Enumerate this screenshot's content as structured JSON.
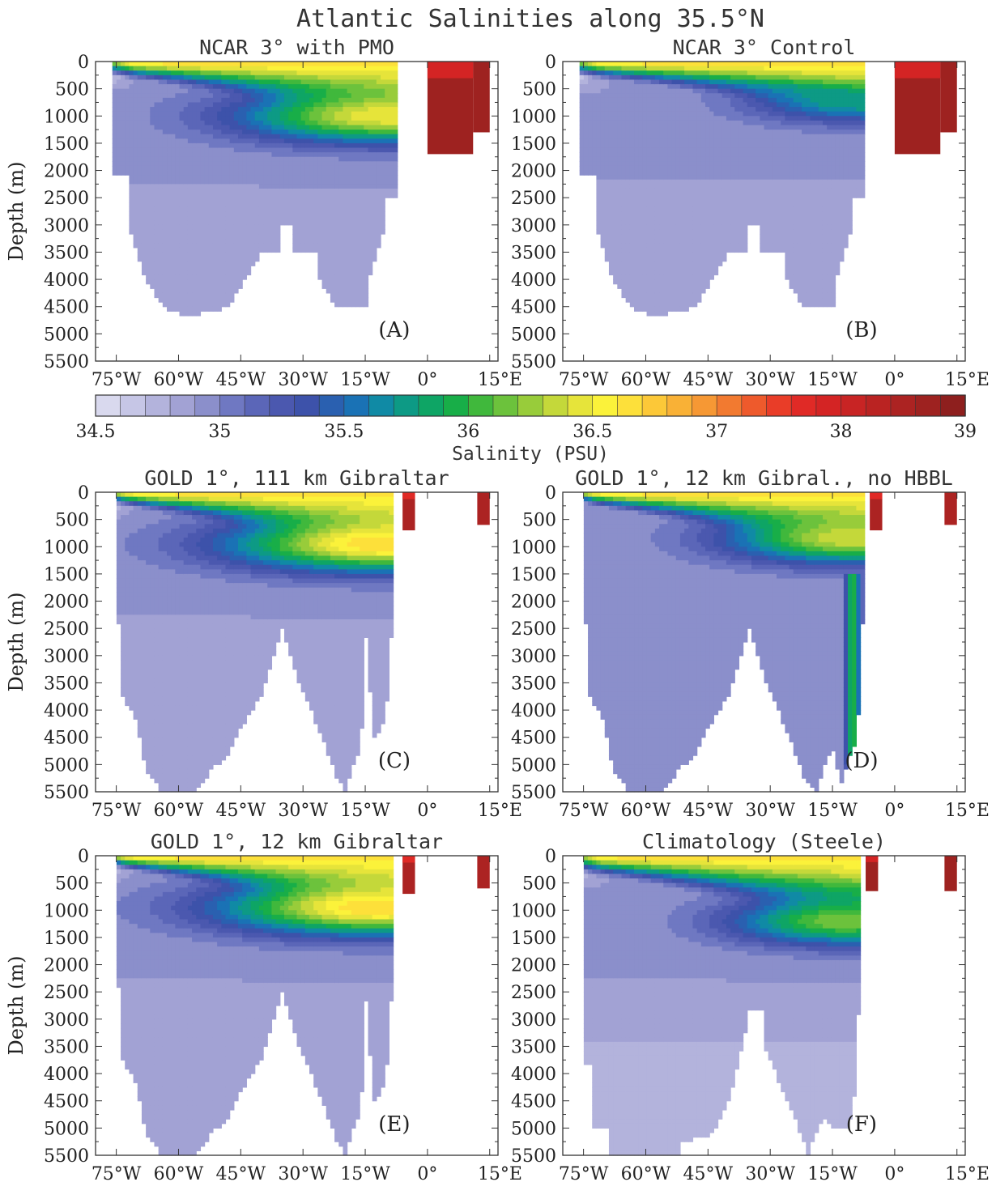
{
  "figure": {
    "title": "Atlantic Salinities along 35.5°N",
    "colorbar_label": "Salinity (PSU)",
    "ylabel": "Depth (m)"
  },
  "colors": {
    "levels": [
      34.5,
      34.6,
      34.7,
      34.8,
      34.9,
      35.0,
      35.1,
      35.2,
      35.3,
      35.4,
      35.5,
      35.6,
      35.7,
      35.8,
      35.9,
      36.0,
      36.1,
      36.2,
      36.3,
      36.4,
      36.5,
      36.6,
      36.7,
      36.8,
      36.9,
      37.0,
      37.2,
      37.4,
      37.6,
      37.8,
      38.0,
      38.2,
      38.4,
      38.6,
      38.8,
      39.0
    ],
    "palette": [
      "#d9d9ee",
      "#c6c6e6",
      "#b3b3dc",
      "#a2a2d4",
      "#8b8fcb",
      "#6f78c2",
      "#5b66b8",
      "#4b58af",
      "#3d52aa",
      "#2a60b0",
      "#1a72b5",
      "#108aa5",
      "#0d9a85",
      "#0ea565",
      "#18ae48",
      "#40b83c",
      "#6cc23c",
      "#98cc3a",
      "#c4d83a",
      "#e6e43a",
      "#fbf23a",
      "#fde03a",
      "#fcc838",
      "#f9b136",
      "#f69834",
      "#f27a30",
      "#ee5a2c",
      "#e93d28",
      "#e02a26",
      "#d42424",
      "#c82424",
      "#ba2322",
      "#ac2322",
      "#9e2220",
      "#8e1f1e"
    ],
    "colorbar_ticks": [
      "34.5",
      "35",
      "35.5",
      "36",
      "36.5",
      "37",
      "38",
      "39"
    ]
  },
  "chart_data": [
    {
      "id": "A",
      "type": "heatmap",
      "title": "NCAR 3° with PMO",
      "panel_label": "(A)",
      "x_unit": "degrees_east",
      "xlim": [
        -80,
        17
      ],
      "ylim": [
        5500,
        0
      ],
      "xticks": [
        "75°W",
        "60°W",
        "45°W",
        "30°W",
        "15°W",
        "0°",
        "15°E"
      ],
      "yticks": [
        "0",
        "500",
        "1000",
        "1500",
        "2000",
        "2500",
        "3000",
        "3500",
        "4000",
        "4500",
        "5000",
        "5500"
      ],
      "ylabel": "Depth (m)",
      "bathymetry": [
        [
          -76,
          2100
        ],
        [
          -72,
          2100
        ],
        [
          -72,
          3000
        ],
        [
          -68,
          4000
        ],
        [
          -64,
          4500
        ],
        [
          -58,
          4700
        ],
        [
          -48,
          4500
        ],
        [
          -44,
          4000
        ],
        [
          -40,
          3500
        ],
        [
          -36,
          3500
        ],
        [
          -36,
          3000
        ],
        [
          -33,
          3000
        ],
        [
          -33,
          3500
        ],
        [
          -26,
          3500
        ],
        [
          -26,
          4000
        ],
        [
          -22,
          4500
        ],
        [
          -14,
          4500
        ],
        [
          -14,
          4000
        ],
        [
          -10,
          3000
        ],
        [
          -10,
          2500
        ],
        [
          -7,
          2500
        ],
        [
          -7,
          0
        ]
      ],
      "mediterranean": {
        "lon": [
          0,
          15
        ],
        "depth": 1700,
        "salinity": 38.7,
        "deep_lon": [
          0,
          11
        ],
        "shallow_lon": [
          11,
          15
        ],
        "shallow_depth": 1300
      },
      "upper_salinity": 36.6,
      "deep_salinity": 34.9,
      "bottom_salinity": 34.8,
      "med_tongue": {
        "lon": -10,
        "depth": 1000,
        "salinity": 36.5,
        "reach": 0.9
      },
      "thermocline_depth_west": 300,
      "thermocline_depth_east": 1400
    },
    {
      "id": "B",
      "type": "heatmap",
      "title": "NCAR 3° Control",
      "panel_label": "(B)",
      "x_unit": "degrees_east",
      "xlim": [
        -80,
        17
      ],
      "ylim": [
        5500,
        0
      ],
      "xticks": [
        "75°W",
        "60°W",
        "45°W",
        "30°W",
        "15°W",
        "0°",
        "15°E"
      ],
      "yticks": [
        "0",
        "500",
        "1000",
        "1500",
        "2000",
        "2500",
        "3000",
        "3500",
        "4000",
        "4500",
        "5000",
        "5500"
      ],
      "ylabel": "",
      "bathymetry": [
        [
          -76,
          2100
        ],
        [
          -72,
          2100
        ],
        [
          -72,
          3000
        ],
        [
          -68,
          4000
        ],
        [
          -64,
          4500
        ],
        [
          -58,
          4700
        ],
        [
          -48,
          4500
        ],
        [
          -44,
          4000
        ],
        [
          -40,
          3500
        ],
        [
          -36,
          3500
        ],
        [
          -36,
          3000
        ],
        [
          -33,
          3000
        ],
        [
          -33,
          3500
        ],
        [
          -26,
          3500
        ],
        [
          -26,
          4000
        ],
        [
          -22,
          4500
        ],
        [
          -14,
          4500
        ],
        [
          -14,
          4000
        ],
        [
          -10,
          3000
        ],
        [
          -10,
          2500
        ],
        [
          -7,
          2500
        ],
        [
          -7,
          0
        ]
      ],
      "mediterranean": {
        "lon": [
          0,
          15
        ],
        "depth": 1700,
        "salinity": 38.7,
        "deep_lon": [
          0,
          11
        ],
        "shallow_lon": [
          11,
          15
        ],
        "shallow_depth": 1300
      },
      "upper_salinity": 36.6,
      "deep_salinity": 34.9,
      "bottom_salinity": 34.8,
      "med_tongue": {
        "lon": -10,
        "depth": 700,
        "salinity": 35.8,
        "reach": 0.5
      },
      "thermocline_depth_west": 300,
      "thermocline_depth_east": 1200
    },
    {
      "id": "C",
      "type": "heatmap",
      "title": "GOLD 1°, 111 km Gibraltar",
      "panel_label": "(C)",
      "x_unit": "degrees_east",
      "xlim": [
        -80,
        17
      ],
      "ylim": [
        5500,
        0
      ],
      "xticks": [
        "75°W",
        "60°W",
        "45°W",
        "30°W",
        "15°W",
        "0°",
        "15°E"
      ],
      "yticks": [
        "0",
        "500",
        "1000",
        "1500",
        "2000",
        "2500",
        "3000",
        "3500",
        "4000",
        "4500",
        "5000",
        "5500"
      ],
      "ylabel": "Depth (m)",
      "bathymetry": [
        [
          -75,
          2400
        ],
        [
          -74,
          2400
        ],
        [
          -74,
          3700
        ],
        [
          -70,
          4200
        ],
        [
          -68,
          5100
        ],
        [
          -64,
          5500
        ],
        [
          -56,
          5500
        ],
        [
          -52,
          5100
        ],
        [
          -48,
          4800
        ],
        [
          -44,
          4200
        ],
        [
          -40,
          3700
        ],
        [
          -37,
          3000
        ],
        [
          -35,
          2500
        ],
        [
          -33,
          3000
        ],
        [
          -30,
          3700
        ],
        [
          -27,
          4200
        ],
        [
          -24,
          4800
        ],
        [
          -22,
          5200
        ],
        [
          -20,
          5500
        ],
        [
          -18,
          5000
        ],
        [
          -16,
          4700
        ],
        [
          -15,
          2500
        ],
        [
          -13,
          4500
        ],
        [
          -10,
          4200
        ],
        [
          -9,
          2700
        ],
        [
          -8,
          2700
        ],
        [
          -8,
          0
        ]
      ],
      "mediterranean": {
        "lon": [
          -6,
          15
        ],
        "depth": 700,
        "salinity": 38.5,
        "deep_lon": [
          -6,
          -3
        ],
        "shallow_lon": [
          12,
          15
        ],
        "shallow_depth": 600
      },
      "upper_salinity": 36.6,
      "deep_salinity": 34.9,
      "bottom_salinity": 34.8,
      "med_tongue": {
        "lon": -10,
        "depth": 950,
        "salinity": 36.7,
        "reach": 1.0
      },
      "thermocline_depth_west": 250,
      "thermocline_depth_east": 1400
    },
    {
      "id": "D",
      "type": "heatmap",
      "title": "GOLD 1°, 12 km Gibral., no HBBL",
      "panel_label": "(D)",
      "x_unit": "degrees_east",
      "xlim": [
        -80,
        17
      ],
      "ylim": [
        5500,
        0
      ],
      "xticks": [
        "75°W",
        "60°W",
        "45°W",
        "30°W",
        "15°W",
        "0°",
        "15°E"
      ],
      "yticks": [
        "0",
        "500",
        "1000",
        "1500",
        "2000",
        "2500",
        "3000",
        "3500",
        "4000",
        "4500",
        "5000",
        "5500"
      ],
      "ylabel": "",
      "bathymetry": [
        [
          -75,
          2400
        ],
        [
          -74,
          2400
        ],
        [
          -74,
          3700
        ],
        [
          -70,
          4200
        ],
        [
          -68,
          5100
        ],
        [
          -64,
          5500
        ],
        [
          -56,
          5500
        ],
        [
          -52,
          5100
        ],
        [
          -48,
          4800
        ],
        [
          -44,
          4200
        ],
        [
          -40,
          3700
        ],
        [
          -37,
          3000
        ],
        [
          -35,
          2500
        ],
        [
          -33,
          3000
        ],
        [
          -30,
          3700
        ],
        [
          -27,
          4200
        ],
        [
          -24,
          4800
        ],
        [
          -22,
          5200
        ],
        [
          -19,
          5500
        ],
        [
          -17,
          5000
        ],
        [
          -15,
          4700
        ],
        [
          -13,
          5400
        ],
        [
          -11,
          4900
        ],
        [
          -9,
          4500
        ],
        [
          -8,
          2700
        ],
        [
          -7,
          1500
        ],
        [
          -7,
          0
        ]
      ],
      "mediterranean": {
        "lon": [
          -6,
          15
        ],
        "depth": 700,
        "salinity": 38.5,
        "deep_lon": [
          -6,
          -3
        ],
        "shallow_lon": [
          12,
          15
        ],
        "shallow_depth": 600
      },
      "upper_salinity": 36.6,
      "deep_salinity": 34.9,
      "bottom_salinity": 34.8,
      "med_tongue": {
        "lon": -10,
        "depth": 850,
        "salinity": 36.4,
        "reach": 0.7
      },
      "deep_plume": {
        "lon": -10,
        "salinity": 36.0
      },
      "thermocline_depth_west": 250,
      "thermocline_depth_east": 1400
    },
    {
      "id": "E",
      "type": "heatmap",
      "title": "GOLD 1°, 12 km Gibraltar",
      "panel_label": "(E)",
      "x_unit": "degrees_east",
      "xlim": [
        -80,
        17
      ],
      "ylim": [
        5500,
        0
      ],
      "xticks": [
        "75°W",
        "60°W",
        "45°W",
        "30°W",
        "15°W",
        "0°",
        "15°E"
      ],
      "yticks": [
        "0",
        "500",
        "1000",
        "1500",
        "2000",
        "2500",
        "3000",
        "3500",
        "4000",
        "4500",
        "5000",
        "5500"
      ],
      "ylabel": "Depth (m)",
      "bathymetry": [
        [
          -75,
          2400
        ],
        [
          -74,
          2400
        ],
        [
          -74,
          3700
        ],
        [
          -70,
          4200
        ],
        [
          -68,
          5100
        ],
        [
          -64,
          5500
        ],
        [
          -56,
          5500
        ],
        [
          -52,
          5100
        ],
        [
          -48,
          4800
        ],
        [
          -44,
          4200
        ],
        [
          -40,
          3700
        ],
        [
          -37,
          3000
        ],
        [
          -35,
          2500
        ],
        [
          -33,
          3000
        ],
        [
          -30,
          3700
        ],
        [
          -27,
          4200
        ],
        [
          -24,
          4800
        ],
        [
          -22,
          5200
        ],
        [
          -20,
          5500
        ],
        [
          -18,
          5000
        ],
        [
          -16,
          4700
        ],
        [
          -15,
          2500
        ],
        [
          -13,
          4500
        ],
        [
          -10,
          4200
        ],
        [
          -9,
          2700
        ],
        [
          -8,
          2700
        ],
        [
          -8,
          0
        ]
      ],
      "mediterranean": {
        "lon": [
          -6,
          15
        ],
        "depth": 700,
        "salinity": 38.5,
        "deep_lon": [
          -6,
          -3
        ],
        "shallow_lon": [
          12,
          15
        ],
        "shallow_depth": 600
      },
      "upper_salinity": 36.6,
      "deep_salinity": 34.9,
      "bottom_salinity": 34.8,
      "med_tongue": {
        "lon": -12,
        "depth": 950,
        "salinity": 36.7,
        "reach": 1.0
      },
      "thermocline_depth_west": 250,
      "thermocline_depth_east": 1400
    },
    {
      "id": "F",
      "type": "heatmap",
      "title": "Climatology (Steele)",
      "panel_label": "(F)",
      "x_unit": "degrees_east",
      "xlim": [
        -80,
        17
      ],
      "ylim": [
        5500,
        0
      ],
      "xticks": [
        "75°W",
        "60°W",
        "45°W",
        "30°W",
        "15°W",
        "0°",
        "15°E"
      ],
      "yticks": [
        "0",
        "500",
        "1000",
        "1500",
        "2000",
        "2500",
        "3000",
        "3500",
        "4000",
        "4500",
        "5000",
        "5500"
      ],
      "ylabel": "",
      "bathymetry": [
        [
          -75,
          3800
        ],
        [
          -73,
          3800
        ],
        [
          -73,
          5000
        ],
        [
          -69,
          5000
        ],
        [
          -69,
          5500
        ],
        [
          -52,
          5500
        ],
        [
          -52,
          5300
        ],
        [
          -44,
          5100
        ],
        [
          -40,
          4500
        ],
        [
          -37,
          3600
        ],
        [
          -35,
          2800
        ],
        [
          -32,
          2800
        ],
        [
          -31,
          3600
        ],
        [
          -27,
          4300
        ],
        [
          -24,
          4800
        ],
        [
          -21,
          5500
        ],
        [
          -19,
          5100
        ],
        [
          -17,
          4800
        ],
        [
          -15,
          5000
        ],
        [
          -12,
          5000
        ],
        [
          -10,
          4700
        ],
        [
          -8,
          1800
        ],
        [
          -8,
          0
        ]
      ],
      "mediterranean": {
        "lon": [
          -7,
          15
        ],
        "depth": 650,
        "salinity": 38.6,
        "deep_lon": [
          -7,
          -4
        ],
        "shallow_lon": [
          12,
          15
        ],
        "shallow_depth": 650
      },
      "upper_salinity": 36.6,
      "deep_salinity": 34.9,
      "bottom_salinity": 34.75,
      "med_tongue": {
        "lon": -12,
        "depth": 1200,
        "salinity": 36.2,
        "reach": 0.6
      },
      "thermocline_depth_west": 350,
      "thermocline_depth_east": 1500
    }
  ]
}
